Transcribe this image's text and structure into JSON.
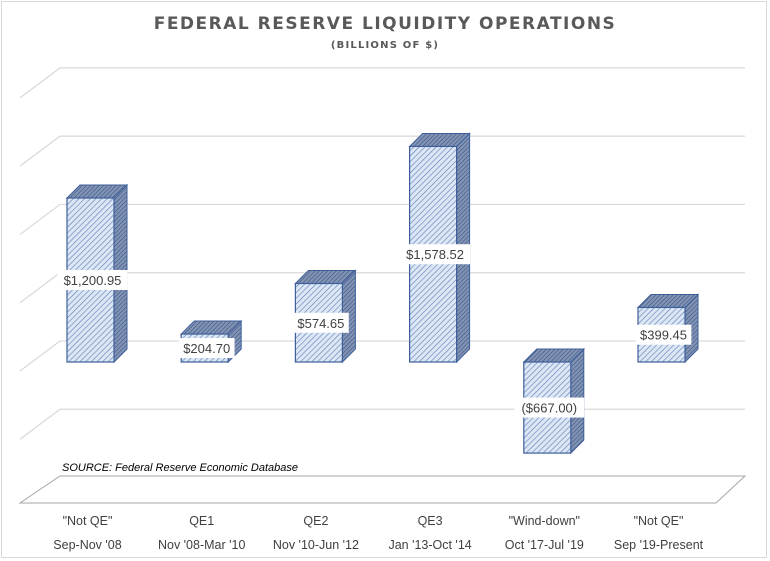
{
  "chart_data": {
    "type": "bar",
    "title": "FEDERAL RESERVE LIQUIDITY OPERATIONS",
    "subtitle": "(BILLIONS OF $)",
    "categories": [
      [
        "\"Not QE\"",
        "Sep-Nov '08"
      ],
      [
        "QE1",
        "Nov '08-Mar '10"
      ],
      [
        "QE2",
        "Nov '10-Jun '12"
      ],
      [
        "QE3",
        "Jan '13-Oct '14"
      ],
      [
        "\"Wind-down\"",
        "Oct '17-Jul '19"
      ],
      [
        "\"Not QE\"",
        "Sep '19-Present"
      ]
    ],
    "values": [
      1200.95,
      204.7,
      574.65,
      1578.52,
      -667.0,
      399.45
    ],
    "data_labels": [
      "$1,200.95",
      "$204.70",
      "$574.65",
      "$1,578.52",
      "($667.00)",
      "$399.45"
    ],
    "ylim": [
      -1000,
      2000
    ],
    "gridlines": [
      -500,
      0,
      500,
      1000,
      1500,
      2000
    ],
    "grid": true,
    "three_d": true,
    "annotation": "SOURCE: Federal Reserve Economic Database",
    "colors": {
      "bar_face": "#dce6f4",
      "bar_hatch": "#4f74b0",
      "bar_side": "#6d83a8",
      "bar_edge": "#3e5f9a",
      "negative_label": "#8b1a1a",
      "grid": "#d9d9d9",
      "text": "#404040"
    }
  }
}
